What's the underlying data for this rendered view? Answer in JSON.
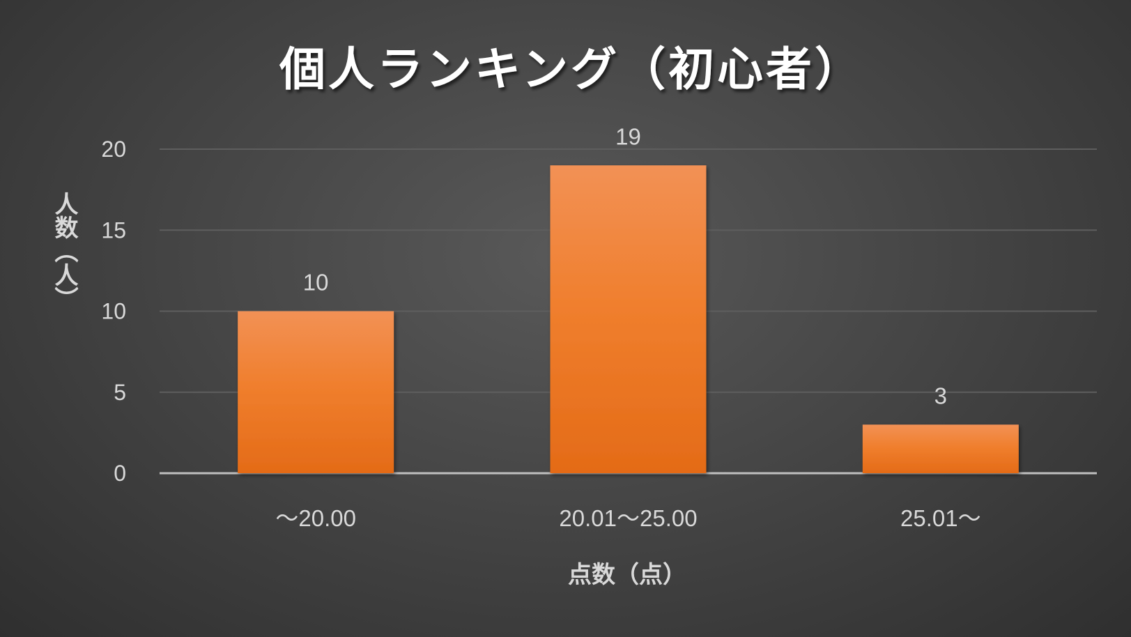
{
  "chart_data": {
    "type": "bar",
    "title": "個人ランキング（初心者）",
    "xlabel": "点数（点）",
    "ylabel": "人数（人）",
    "categories": [
      "～20.00",
      "20.01～25.00",
      "25.01～"
    ],
    "values": [
      10,
      19,
      3
    ],
    "ylim": [
      0,
      20
    ],
    "yticks": [
      0,
      5,
      10,
      15,
      20
    ],
    "grid": true,
    "legend": "none",
    "data_labels": true,
    "colors": {
      "bar_top": "#f29155",
      "bar_mid": "#f07f2e",
      "bar_bottom": "#e46b17",
      "gridline": "#5e5e5e",
      "baseline": "#bfbfbf",
      "text": "#d9d9d9",
      "title": "#ffffff"
    }
  }
}
